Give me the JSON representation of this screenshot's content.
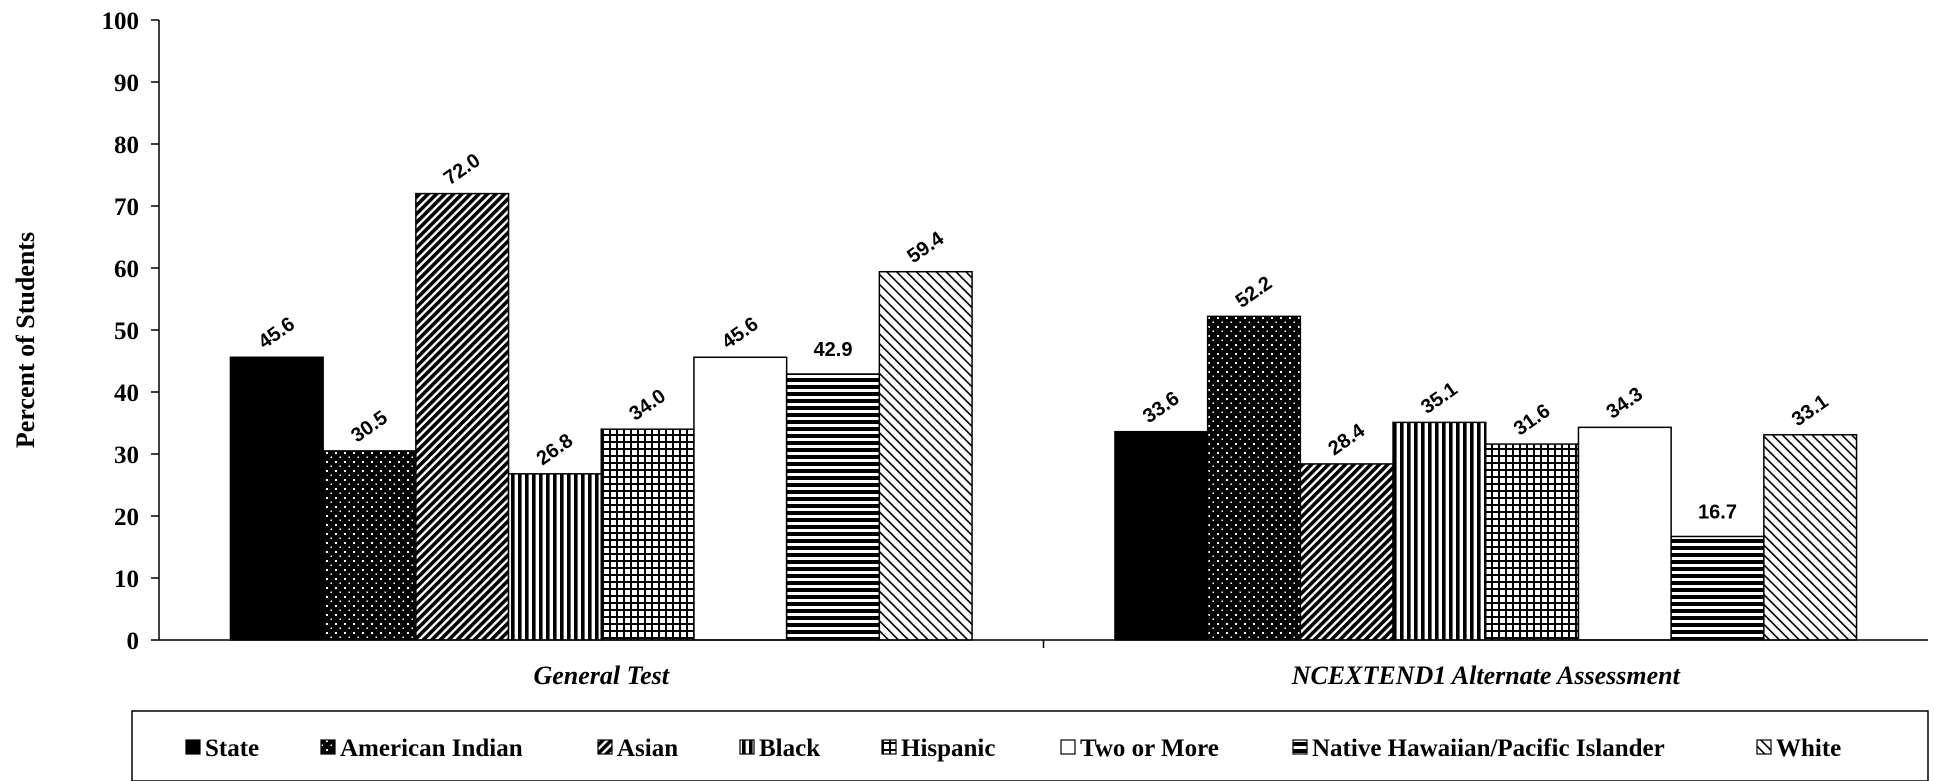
{
  "chart_data": {
    "type": "bar",
    "ylabel": "Percent of Students",
    "xlabel": "",
    "ylim": [
      0,
      100
    ],
    "yticks": [
      0,
      10,
      20,
      30,
      40,
      50,
      60,
      70,
      80,
      90,
      100
    ],
    "categories": [
      "General Test",
      "NCEXTEND1 Alternate Assessment"
    ],
    "grid": false,
    "legend_position": "bottom",
    "series": [
      {
        "name": "State",
        "values": [
          45.6,
          33.6
        ],
        "labels": [
          "45.6",
          "33.6"
        ],
        "pattern": "solid"
      },
      {
        "name": "American Indian",
        "values": [
          30.5,
          52.2
        ],
        "labels": [
          "30.5",
          "52.2"
        ],
        "pattern": "dots"
      },
      {
        "name": "Asian",
        "values": [
          72.0,
          28.4
        ],
        "labels": [
          "72.0",
          "28.4"
        ],
        "pattern": "diag-dense"
      },
      {
        "name": "Black",
        "values": [
          26.8,
          35.1
        ],
        "labels": [
          "26.8",
          "35.1"
        ],
        "pattern": "vertical"
      },
      {
        "name": "Hispanic",
        "values": [
          34.0,
          31.6
        ],
        "labels": [
          "34.0",
          "31.6"
        ],
        "pattern": "grid"
      },
      {
        "name": "Two or More",
        "values": [
          45.6,
          34.3
        ],
        "labels": [
          "45.6",
          "34.3"
        ],
        "pattern": "white"
      },
      {
        "name": "Native Hawaiian/Pacific Islander",
        "values": [
          42.9,
          16.7
        ],
        "labels": [
          "42.9",
          "16.7"
        ],
        "pattern": "horizontal"
      },
      {
        "name": "White",
        "values": [
          59.4,
          33.1
        ],
        "labels": [
          "59.4",
          "33.1"
        ],
        "pattern": "diag-light"
      }
    ]
  }
}
